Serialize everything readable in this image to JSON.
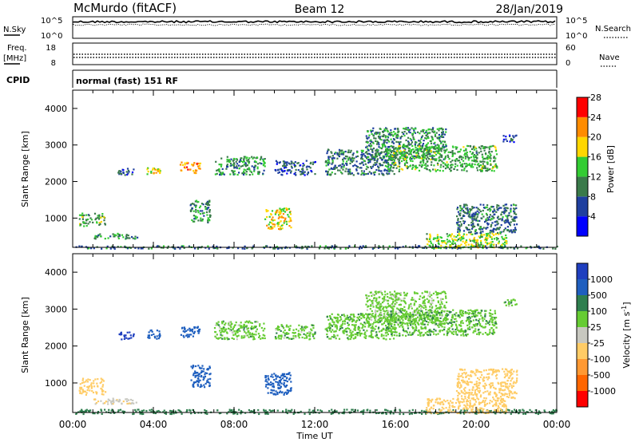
{
  "header": {
    "station": "McMurdo (fitACF)",
    "beam": "Beam 12",
    "date": "28/Jan/2019"
  },
  "noise_panel": {
    "left_label": "N.Sky",
    "right_label": "N.Search",
    "tick_top": "10^5",
    "tick_bottom": "10^0"
  },
  "freq_panel": {
    "left_label_1": "Freq.",
    "left_label_2": "[MHz]",
    "right_label": "Nave",
    "left_ticks": [
      "18",
      "8"
    ],
    "right_ticks": [
      "60",
      "0"
    ]
  },
  "cpid_panel": {
    "label": "CPID",
    "text": "normal (fast) 151 RF"
  },
  "x_axis": {
    "label": "Time UT",
    "ticks": [
      "00:00",
      "04:00",
      "08:00",
      "12:00",
      "16:00",
      "20:00",
      "00:00"
    ]
  },
  "colors": {
    "power_scale": [
      "#0000ff",
      "#1f3f9f",
      "#3a7a4a",
      "#33cc33",
      "#ffd700",
      "#ff8c00",
      "#ff0000"
    ],
    "velocity_scale": [
      "#1f3fbf",
      "#1f5fbf",
      "#2f7f4f",
      "#66cc33",
      "#c8c8c0",
      "#ffcc66",
      "#ff9933",
      "#ff6600",
      "#ff0000"
    ]
  },
  "chart_data": [
    {
      "type": "heatmap",
      "name": "power",
      "ylabel": "Slant Range [km]",
      "xlabel": "",
      "ylim": [
        200,
        4500
      ],
      "xlim_hours": [
        0,
        24
      ],
      "y_ticks": [
        "1000",
        "2000",
        "3000",
        "4000"
      ],
      "colorbar": {
        "label": "Power [dB]",
        "ticks": [
          "4",
          "8",
          "12",
          "16",
          "20",
          "24",
          "28"
        ],
        "range": [
          0,
          32
        ]
      },
      "regions": [
        {
          "t0": 0.0,
          "t1": 24.0,
          "r0": 180,
          "r1": 260,
          "v": 10
        },
        {
          "t0": 0.3,
          "t1": 1.6,
          "r0": 800,
          "r1": 1150,
          "v": 14
        },
        {
          "t0": 1.0,
          "t1": 3.2,
          "r0": 450,
          "r1": 600,
          "v": 12
        },
        {
          "t0": 2.2,
          "t1": 3.0,
          "r0": 2200,
          "r1": 2400,
          "v": 8
        },
        {
          "t0": 3.6,
          "t1": 4.3,
          "r0": 2200,
          "r1": 2450,
          "v": 20
        },
        {
          "t0": 5.3,
          "t1": 6.3,
          "r0": 2250,
          "r1": 2550,
          "v": 24
        },
        {
          "t0": 7.0,
          "t1": 9.5,
          "r0": 2200,
          "r1": 2700,
          "v": 12
        },
        {
          "t0": 5.8,
          "t1": 6.8,
          "r0": 900,
          "r1": 1500,
          "v": 12
        },
        {
          "t0": 9.5,
          "t1": 10.8,
          "r0": 700,
          "r1": 1300,
          "v": 20
        },
        {
          "t0": 10.0,
          "t1": 12.0,
          "r0": 2200,
          "r1": 2600,
          "v": 8
        },
        {
          "t0": 12.5,
          "t1": 16.0,
          "r0": 2200,
          "r1": 2900,
          "v": 10
        },
        {
          "t0": 14.5,
          "t1": 18.5,
          "r0": 2600,
          "r1": 3500,
          "v": 12
        },
        {
          "t0": 15.5,
          "t1": 21.0,
          "r0": 2300,
          "r1": 3000,
          "v": 14
        },
        {
          "t0": 17.5,
          "t1": 21.5,
          "r0": 200,
          "r1": 600,
          "v": 18
        },
        {
          "t0": 19.0,
          "t1": 22.0,
          "r0": 600,
          "r1": 1400,
          "v": 10
        },
        {
          "t0": 21.3,
          "t1": 22.0,
          "r0": 3100,
          "r1": 3300,
          "v": 8
        }
      ]
    },
    {
      "type": "heatmap",
      "name": "velocity",
      "ylabel": "Slant Range [km]",
      "xlabel": "Time UT",
      "ylim": [
        200,
        4500
      ],
      "xlim_hours": [
        0,
        24
      ],
      "y_ticks": [
        "1000",
        "2000",
        "3000",
        "4000"
      ],
      "colorbar": {
        "label": "Velocity [m s^-1]",
        "ticks": [
          "1000",
          "500",
          "100",
          "25",
          "-25",
          "-100",
          "-500",
          "-1000"
        ],
        "range": [
          -1000,
          1000
        ]
      },
      "regions": [
        {
          "t0": 0.0,
          "t1": 24.0,
          "r0": 180,
          "r1": 300,
          "v": 60
        },
        {
          "t0": 0.3,
          "t1": 1.6,
          "r0": 700,
          "r1": 1150,
          "v": -150
        },
        {
          "t0": 1.0,
          "t1": 3.2,
          "r0": 450,
          "r1": 600,
          "v": -80
        },
        {
          "t0": 2.2,
          "t1": 3.0,
          "r0": 2200,
          "r1": 2400,
          "v": 600
        },
        {
          "t0": 3.6,
          "t1": 4.3,
          "r0": 2200,
          "r1": 2450,
          "v": 300
        },
        {
          "t0": 5.3,
          "t1": 6.3,
          "r0": 2250,
          "r1": 2550,
          "v": 200
        },
        {
          "t0": 7.0,
          "t1": 9.5,
          "r0": 2200,
          "r1": 2700,
          "v": 0
        },
        {
          "t0": 5.8,
          "t1": 6.8,
          "r0": 900,
          "r1": 1500,
          "v": 300
        },
        {
          "t0": 9.5,
          "t1": 10.8,
          "r0": 700,
          "r1": 1300,
          "v": 200
        },
        {
          "t0": 10.0,
          "t1": 12.0,
          "r0": 2200,
          "r1": 2600,
          "v": 0
        },
        {
          "t0": 12.5,
          "t1": 16.0,
          "r0": 2200,
          "r1": 2900,
          "v": 5
        },
        {
          "t0": 14.5,
          "t1": 18.5,
          "r0": 2600,
          "r1": 3500,
          "v": -5
        },
        {
          "t0": 15.5,
          "t1": 21.0,
          "r0": 2300,
          "r1": 3000,
          "v": 10
        },
        {
          "t0": 17.5,
          "t1": 21.5,
          "r0": 200,
          "r1": 600,
          "v": -300
        },
        {
          "t0": 19.0,
          "t1": 22.0,
          "r0": 600,
          "r1": 1400,
          "v": -200
        },
        {
          "t0": 21.3,
          "t1": 22.0,
          "r0": 3100,
          "r1": 3300,
          "v": 0
        }
      ]
    }
  ]
}
